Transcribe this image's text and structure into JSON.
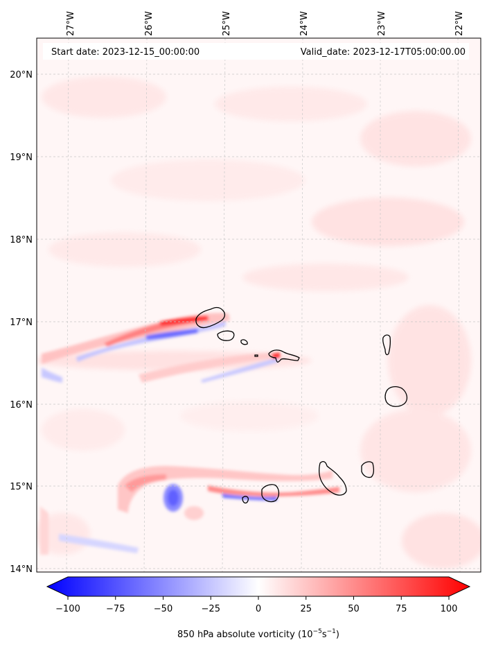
{
  "header": {
    "start_date": "Start date: 2023-12-15_00:00:00",
    "valid_date": "Valid_date: 2023-12-17T05:00:00.00"
  },
  "axes": {
    "lon_labels": [
      "27°W",
      "26°W",
      "25°W",
      "24°W",
      "23°W",
      "22°W"
    ],
    "lat_labels": [
      "20°N",
      "19°N",
      "18°N",
      "17°N",
      "16°N",
      "15°N",
      "14°N"
    ]
  },
  "colorbar": {
    "tick_labels": [
      "−100",
      "−75",
      "−50",
      "−25",
      "0",
      "25",
      "50",
      "75",
      "100"
    ],
    "label_main": "850 hPa absolute vorticity (10",
    "label_exp1": "−5",
    "label_mid": "s",
    "label_exp2": "−1",
    "label_end": ")",
    "vmin": -100,
    "vmax": 100
  },
  "colors": {
    "negative": "#0000ff",
    "zero": "#ffffff",
    "positive": "#ff0000"
  }
}
